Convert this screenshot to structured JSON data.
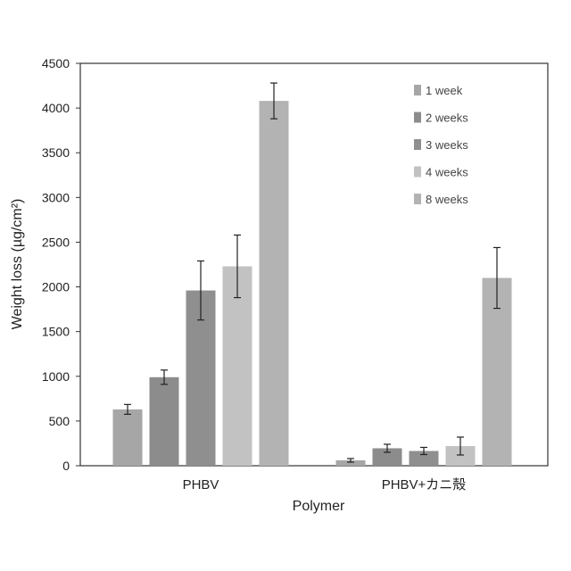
{
  "chart_data": {
    "type": "bar",
    "title": "",
    "xlabel": "Polymer",
    "ylabel": "Weight loss (µg/cm²)",
    "ylim": [
      0,
      4500
    ],
    "yticks": [
      0,
      500,
      1000,
      1500,
      2000,
      2500,
      3000,
      3500,
      4000,
      4500
    ],
    "categories": [
      "PHBV",
      "PHBV+カニ殻"
    ],
    "series": [
      {
        "name": "1 week",
        "color": "#a6a6a6",
        "values": [
          630,
          60
        ],
        "errors": [
          55,
          20
        ]
      },
      {
        "name": "2 weeks",
        "color": "#8c8c8c",
        "values": [
          990,
          195
        ],
        "errors": [
          80,
          45
        ]
      },
      {
        "name": "3 weeks",
        "color": "#8f8f8f",
        "values": [
          1960,
          165
        ],
        "errors": [
          330,
          40
        ]
      },
      {
        "name": "4 weeks",
        "color": "#c2c2c2",
        "values": [
          2230,
          220
        ],
        "errors": [
          350,
          100
        ]
      },
      {
        "name": "8 weeks",
        "color": "#b3b3b3",
        "values": [
          4080,
          2100
        ],
        "errors": [
          200,
          340
        ]
      }
    ],
    "grid": false,
    "legend_position": "top-right",
    "error_bars": true
  }
}
